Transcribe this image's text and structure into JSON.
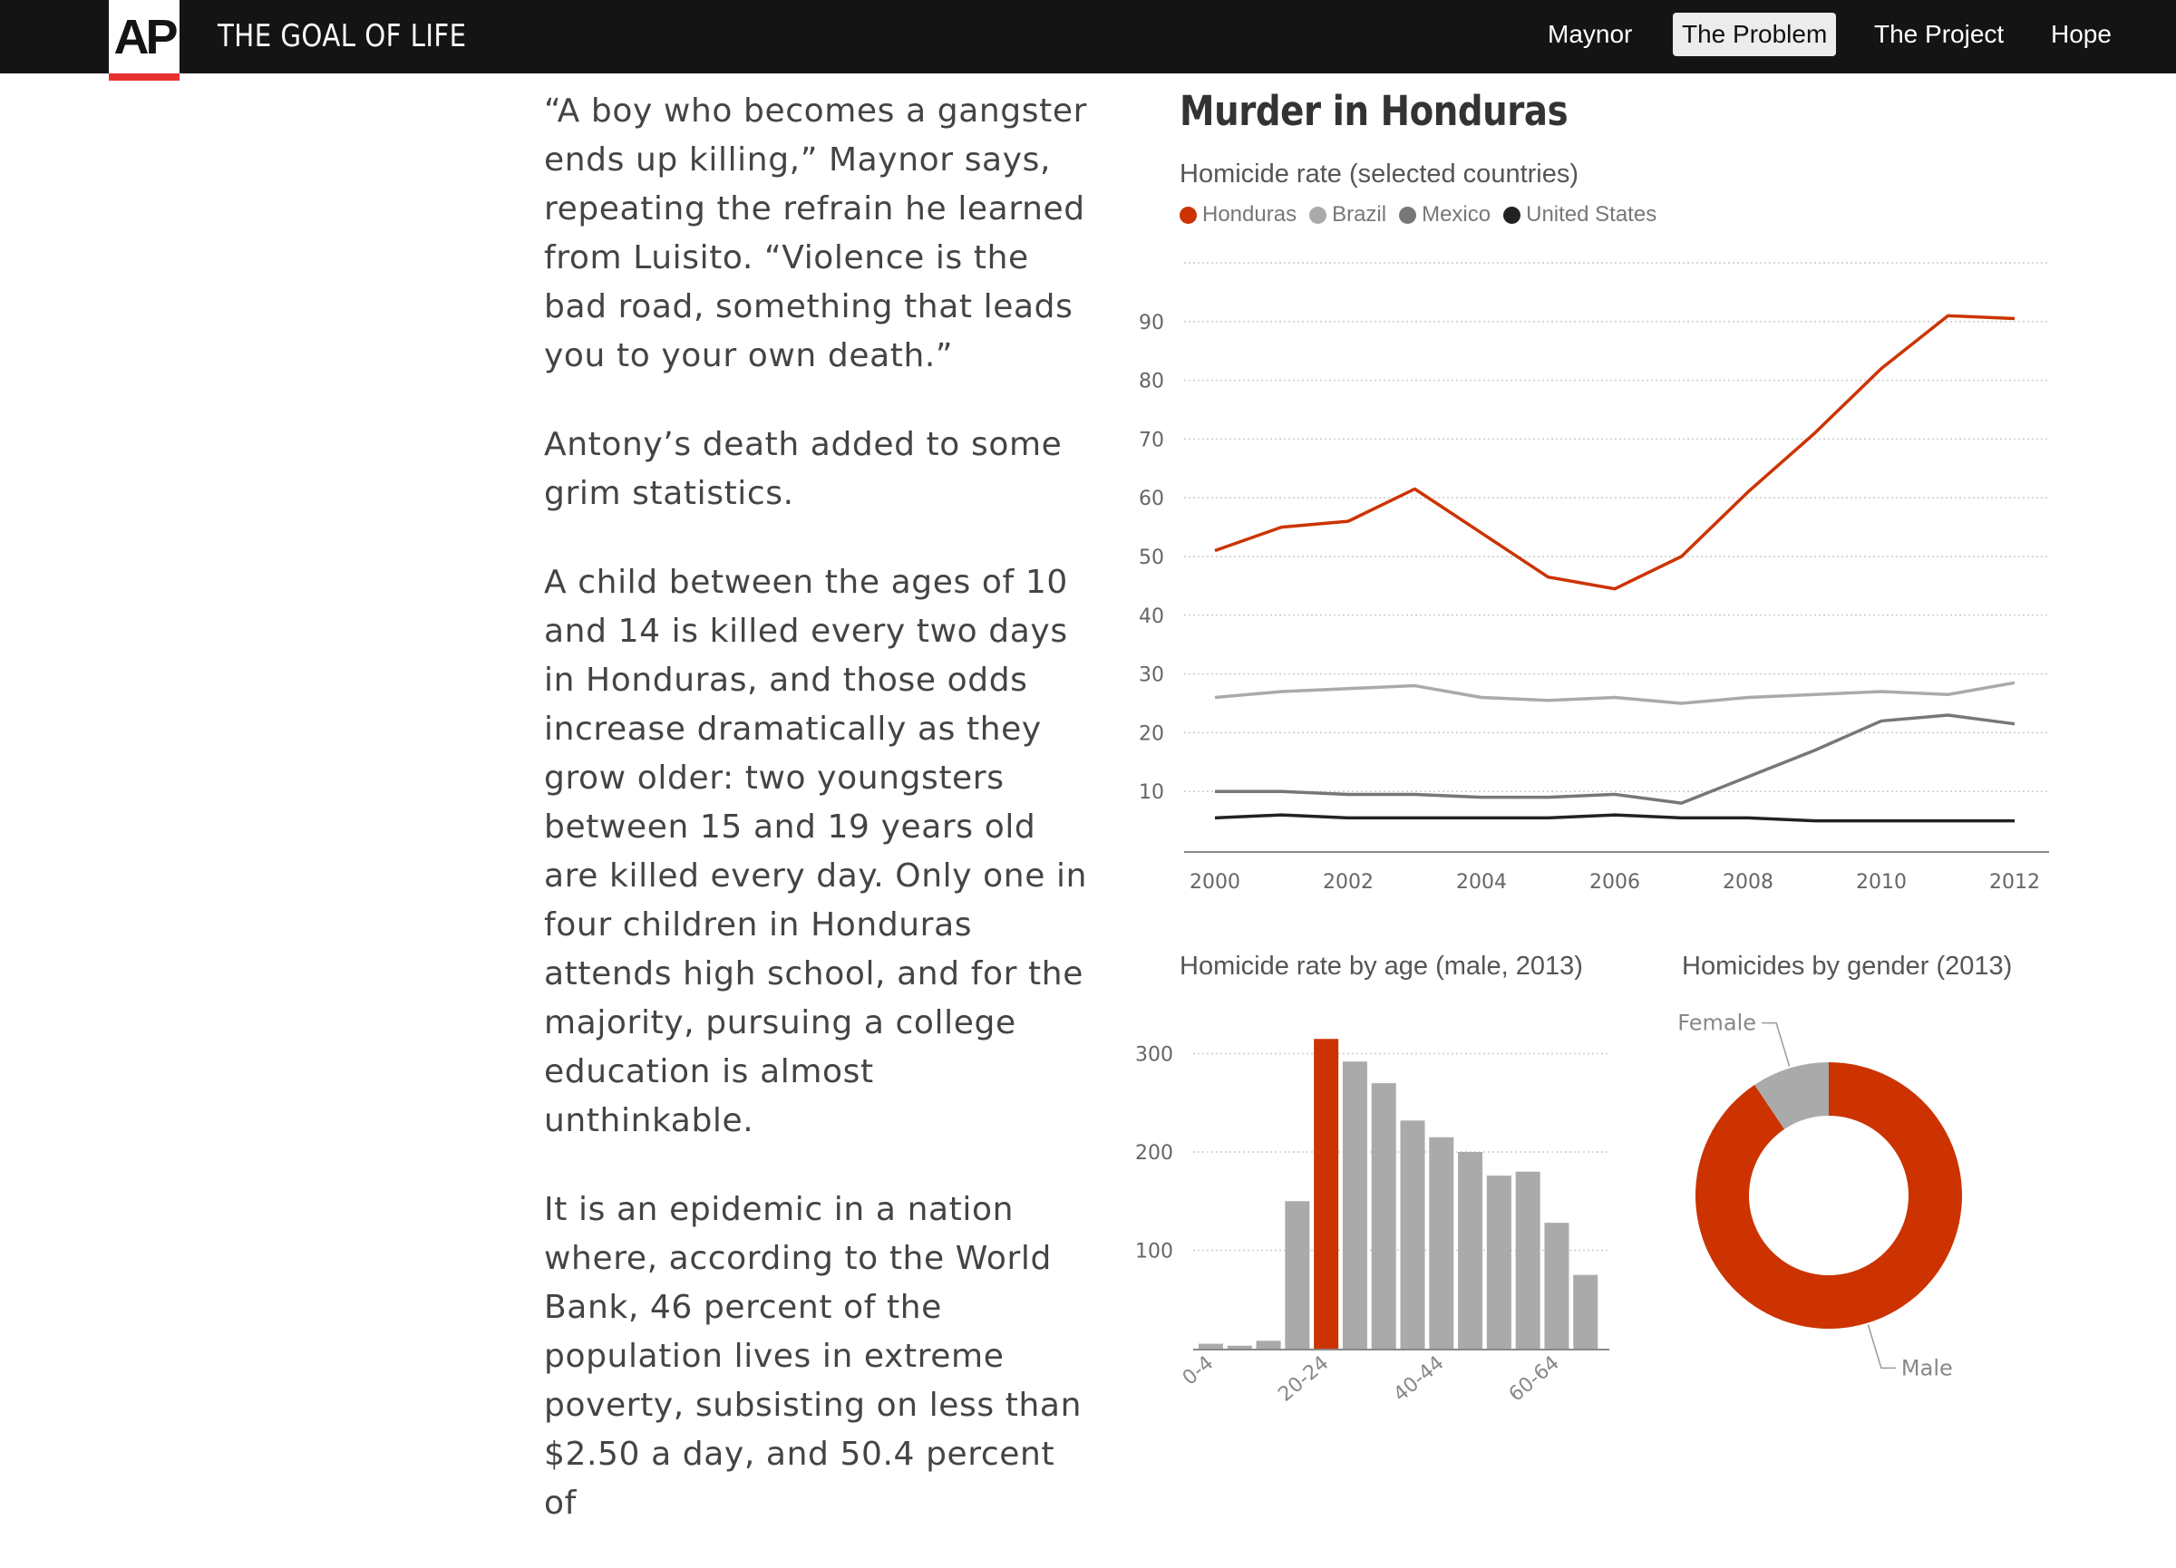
{
  "header": {
    "logo_text": "AP",
    "site_title": "THE GOAL OF LIFE",
    "nav": [
      {
        "label": "Maynor",
        "active": false
      },
      {
        "label": "The Problem",
        "active": true
      },
      {
        "label": "The Project",
        "active": false
      },
      {
        "label": "Hope",
        "active": false
      }
    ]
  },
  "article": {
    "paragraphs": [
      "“A boy who becomes a gangster ends up killing,” Maynor says, repeating the refrain he learned from Luisito. “Violence is the bad road, something that leads you to your own death.”",
      "Antony’s death added to some grim statistics.",
      "A child between the ages of 10 and 14 is killed every two days in Honduras, and those odds increase dramatically as they grow older: two youngsters between 15 and 19 years old are killed every day. Only one in four children in Honduras attends high school, and for the majority, pursuing a college education is almost unthinkable.",
      "It is an epidemic in a nation where, according to the World Bank, 46 percent of the population lives in extreme poverty, subsisting on less than $2.50 a day, and 50.4 percent of"
    ]
  },
  "graphic": {
    "title": "Murder in Honduras"
  },
  "colors": {
    "honduras": "#cc3300",
    "brazil": "#aaaaaa",
    "mexico": "#777777",
    "united_states": "#222222",
    "bar_default": "#aaaaaa",
    "bar_highlight": "#cc3300",
    "donut_male": "#cc3300",
    "donut_female": "#aaaaaa"
  },
  "chart_data": [
    {
      "type": "line",
      "subtitle": "Homicide rate (selected countries)",
      "x": [
        2000,
        2001,
        2002,
        2003,
        2004,
        2005,
        2006,
        2007,
        2008,
        2009,
        2010,
        2011,
        2012
      ],
      "x_tick_labels": [
        "2000",
        "2002",
        "2004",
        "2006",
        "2008",
        "2010",
        "2012"
      ],
      "y_ticks": [
        10,
        20,
        30,
        40,
        50,
        60,
        70,
        80,
        90
      ],
      "ylim": [
        0,
        100
      ],
      "grid": true,
      "legend": "top-left",
      "series": [
        {
          "name": "Honduras",
          "color_key": "honduras",
          "values": [
            51,
            55,
            56,
            61.5,
            54,
            46.5,
            44.5,
            50,
            61,
            71,
            82,
            91,
            90.5
          ]
        },
        {
          "name": "Brazil",
          "color_key": "brazil",
          "values": [
            26,
            27,
            27.5,
            28,
            26,
            25.5,
            26,
            25,
            26,
            26.5,
            27,
            26.5,
            28.5
          ]
        },
        {
          "name": "Mexico",
          "color_key": "mexico",
          "values": [
            10,
            10,
            9.5,
            9.5,
            9,
            9,
            9.5,
            8,
            12.5,
            17,
            22,
            23,
            21.5
          ]
        },
        {
          "name": "United States",
          "color_key": "united_states",
          "values": [
            5.5,
            6,
            5.5,
            5.5,
            5.5,
            5.5,
            6,
            5.5,
            5.5,
            5,
            5,
            5,
            5
          ]
        }
      ]
    },
    {
      "type": "bar",
      "subtitle": "Homicide rate by age (male, 2013)",
      "categories": [
        "0-4",
        "5-9",
        "10-14",
        "15-19",
        "20-24",
        "25-29",
        "30-34",
        "35-39",
        "40-44",
        "45-49",
        "50-54",
        "55-59",
        "60-64",
        "65+"
      ],
      "visible_tick_labels": [
        "0-4",
        "20-24",
        "40-44",
        "60-64"
      ],
      "values": [
        5,
        3,
        8,
        150,
        315,
        292,
        270,
        232,
        215,
        200,
        176,
        180,
        128,
        75
      ],
      "highlight": "20-24",
      "y_ticks": [
        100,
        200,
        300
      ],
      "ylim": [
        0,
        330
      ],
      "grid": true
    },
    {
      "type": "pie",
      "subtitle": "Homicides by gender (2013)",
      "labels": [
        "Male",
        "Female"
      ],
      "values": [
        90.6,
        9.4
      ],
      "donut": true
    }
  ]
}
